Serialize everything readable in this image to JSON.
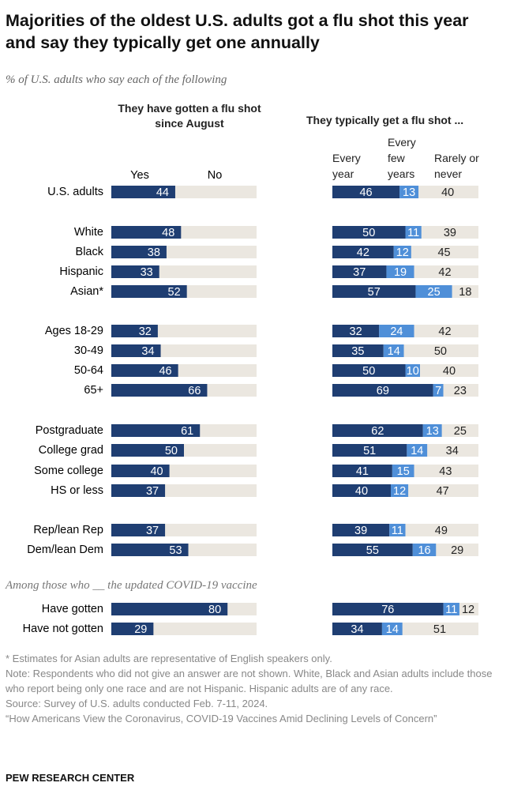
{
  "title": "Majorities of the oldest U.S. adults got a flu shot this year and say they typically get one annually",
  "subtitle": "% of U.S. adults who say each of the following",
  "chart_data": [
    {
      "type": "bar",
      "title": "They have gotten a flu shot since August",
      "categories": [
        "U.S. adults",
        "White",
        "Black",
        "Hispanic",
        "Asian*",
        "Ages 18-29",
        "30-49",
        "50-64",
        "65+",
        "Postgraduate",
        "College grad",
        "Some college",
        "HS or less",
        "Rep/lean Rep",
        "Dem/lean Dem",
        "Have gotten",
        "Have not gotten"
      ],
      "annotation": "Among those who __ the updated COVID-19 vaccine",
      "series": [
        {
          "name": "Yes",
          "color": "#1f3e72",
          "values": [
            44,
            48,
            38,
            33,
            52,
            32,
            34,
            46,
            66,
            61,
            50,
            40,
            37,
            37,
            53,
            80,
            29
          ]
        }
      ],
      "remainder_label": "No",
      "remainder_color": "#ebe7e0",
      "xlim": [
        0,
        100
      ]
    },
    {
      "type": "stacked_bar",
      "title": "They typically get a flu shot ...",
      "series": [
        {
          "name": "Every year",
          "color": "#1f3e72",
          "values": [
            46,
            50,
            42,
            37,
            57,
            32,
            35,
            50,
            69,
            62,
            51,
            41,
            40,
            39,
            55,
            76,
            34
          ]
        },
        {
          "name": "Every few years",
          "color": "#4f8fd8",
          "values": [
            13,
            11,
            12,
            19,
            25,
            24,
            14,
            10,
            7,
            13,
            14,
            15,
            12,
            11,
            16,
            11,
            14
          ]
        },
        {
          "name": "Rarely or never",
          "color": "#ebe7e0",
          "values": [
            40,
            39,
            45,
            42,
            18,
            42,
            50,
            40,
            23,
            25,
            34,
            43,
            47,
            49,
            29,
            12,
            51
          ]
        }
      ],
      "xlim": [
        0,
        100
      ]
    }
  ],
  "notes": [
    "* Estimates for Asian adults are representative of English speakers only.",
    "Note: Respondents who did not give an answer are not shown. White, Black and Asian adults include those who report being only one race and are not Hispanic. Hispanic adults are of any race.",
    "Source: Survey of U.S. adults conducted Feb. 7-11, 2024.",
    "“How Americans View the Coronavirus, COVID-19 Vaccines Amid Declining Levels of Concern”"
  ],
  "organization": "PEW RESEARCH CENTER"
}
